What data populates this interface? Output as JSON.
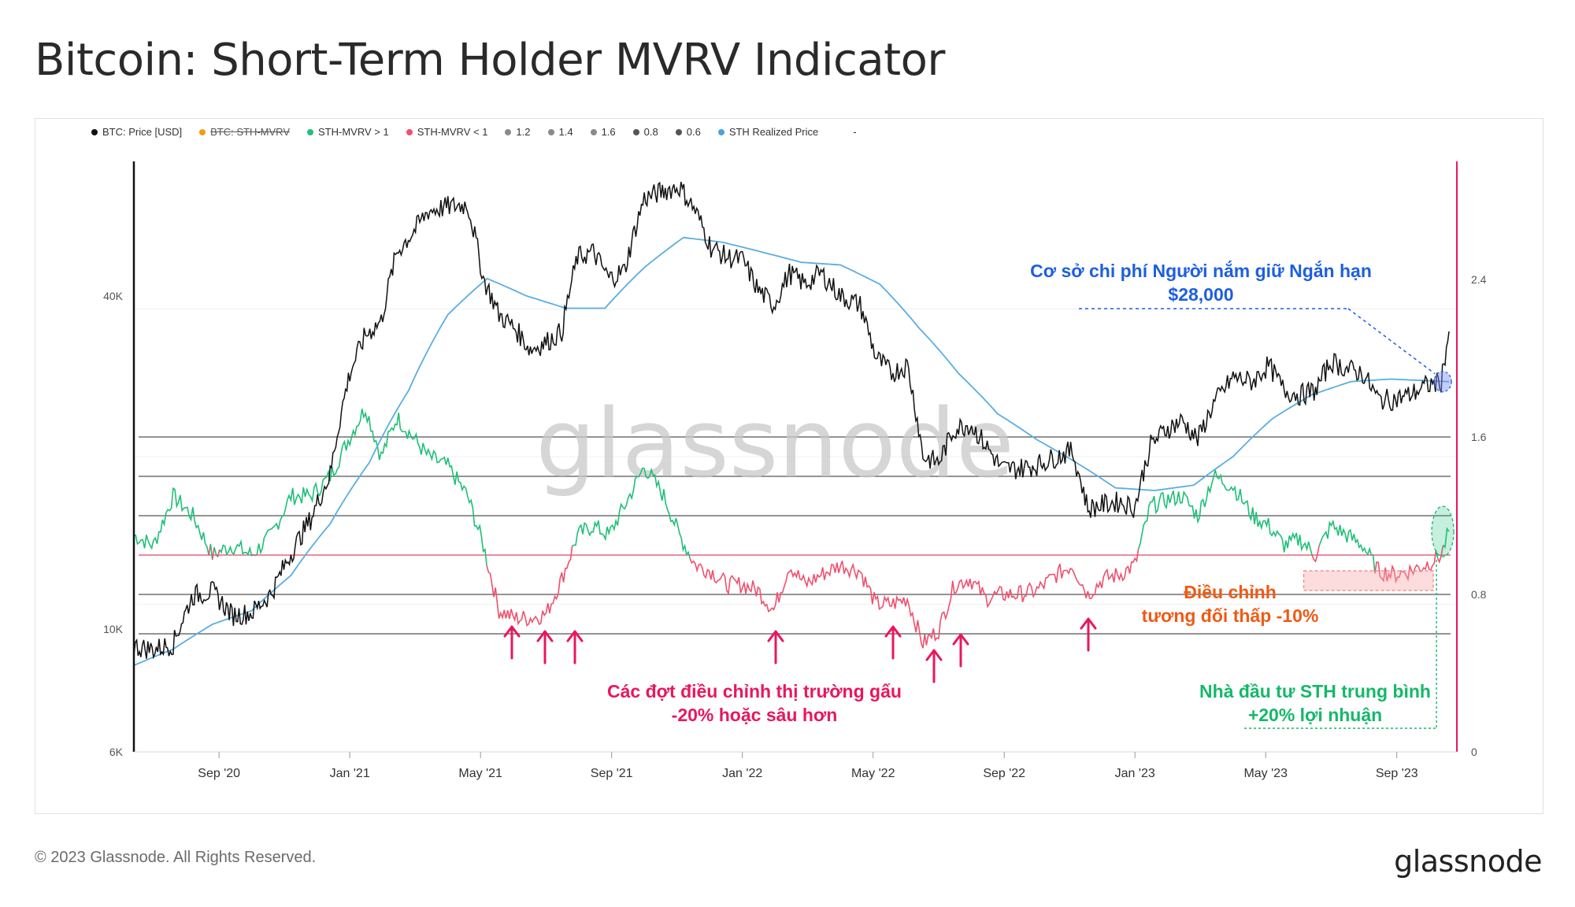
{
  "title": "Bitcoin: Short-Term Holder MVRV Indicator",
  "footer": "© 2023 Glassnode. All Rights Reserved.",
  "brand": "glassnode",
  "watermark": "glassnode",
  "legend": [
    {
      "label": "BTC: Price [USD]",
      "color": "#111111",
      "struck": false
    },
    {
      "label": "BTC: STH-MVRV",
      "color": "#f39c12",
      "struck": true
    },
    {
      "label": "STH-MVRV > 1",
      "color": "#1fc07a",
      "struck": false
    },
    {
      "label": "STH-MVRV < 1",
      "color": "#f0506e",
      "struck": false
    },
    {
      "label": "1.2",
      "color": "#8a8a8a",
      "struck": false
    },
    {
      "label": "1.4",
      "color": "#8a8a8a",
      "struck": false
    },
    {
      "label": "1.6",
      "color": "#8a8a8a",
      "struck": false
    },
    {
      "label": "0.8",
      "color": "#555555",
      "struck": false
    },
    {
      "label": "0.6",
      "color": "#555555",
      "struck": false
    },
    {
      "label": "STH Realized Price",
      "color": "#4aa3df",
      "struck": false
    },
    {
      "label": "-",
      "color": "",
      "struck": false
    }
  ],
  "annotations": {
    "cost_basis_line1": "Cơ sở chi phí Người nắm giữ Ngắn hạn",
    "cost_basis_line2": "$28,000",
    "correction_line1": "Điều chỉnh",
    "correction_line2": "tương đối thấp -10%",
    "bear_line1": "Các đợt điều chỉnh thị trường gấu",
    "bear_line2": "-20% hoặc sâu hơn",
    "profit_line1": "Nhà đầu tư STH trung bình",
    "profit_line2": "+20% lợi nhuận"
  },
  "colors": {
    "price": "#111111",
    "realized": "#5aaee0",
    "above": "#1fbf78",
    "below": "#f0506e",
    "blue_note": "#1d5fe0",
    "orange_note": "#f05a14",
    "pink_note": "#e8175d",
    "green_note": "#14b86a",
    "axis_right": "#e8175d"
  },
  "chart_data": {
    "type": "line",
    "x_range": [
      "2020-06-15",
      "2023-10-20"
    ],
    "x_ticks": [
      {
        "label": "Sep '20",
        "t": 2020.667
      },
      {
        "label": "Jan '21",
        "t": 2021.0
      },
      {
        "label": "May '21",
        "t": 2021.333
      },
      {
        "label": "Sep '21",
        "t": 2021.667
      },
      {
        "label": "Jan '22",
        "t": 2022.0
      },
      {
        "label": "May '22",
        "t": 2022.333
      },
      {
        "label": "Sep '22",
        "t": 2022.667
      },
      {
        "label": "Jan '23",
        "t": 2023.0
      },
      {
        "label": "May '23",
        "t": 2023.333
      },
      {
        "label": "Sep '23",
        "t": 2023.667
      }
    ],
    "left_axis": {
      "scale": "log",
      "ylim": [
        6000,
        70000
      ],
      "ticks": [
        {
          "label": "6K",
          "v": 6000
        },
        {
          "label": "10K",
          "v": 10000
        },
        {
          "label": "40K",
          "v": 40000
        }
      ]
    },
    "right_axis": {
      "ylim": [
        0,
        3.0
      ],
      "ticks": [
        {
          "label": "0",
          "v": 0
        },
        {
          "label": "0.8",
          "v": 0.8
        },
        {
          "label": "1.6",
          "v": 1.6
        },
        {
          "label": "2.4",
          "v": 2.4
        }
      ]
    },
    "reference_lines": [
      0.6,
      0.8,
      1.0,
      1.2,
      1.4,
      1.6
    ],
    "series": [
      {
        "name": "BTC: Price [USD]",
        "axis": "left",
        "t": [
          2020.45,
          2020.5,
          2020.55,
          2020.6,
          2020.65,
          2020.7,
          2020.75,
          2020.8,
          2020.85,
          2020.9,
          2020.95,
          2021.0,
          2021.04,
          2021.08,
          2021.12,
          2021.16,
          2021.2,
          2021.25,
          2021.3,
          2021.34,
          2021.38,
          2021.42,
          2021.46,
          2021.5,
          2021.54,
          2021.58,
          2021.62,
          2021.66,
          2021.7,
          2021.75,
          2021.8,
          2021.84,
          2021.88,
          2021.92,
          2021.96,
          2022.0,
          2022.04,
          2022.08,
          2022.12,
          2022.16,
          2022.2,
          2022.25,
          2022.3,
          2022.34,
          2022.38,
          2022.42,
          2022.46,
          2022.5,
          2022.54,
          2022.58,
          2022.62,
          2022.66,
          2022.7,
          2022.75,
          2022.8,
          2022.84,
          2022.88,
          2022.92,
          2022.96,
          2023.0,
          2023.04,
          2023.08,
          2023.12,
          2023.16,
          2023.2,
          2023.25,
          2023.3,
          2023.34,
          2023.38,
          2023.42,
          2023.46,
          2023.5,
          2023.54,
          2023.58,
          2023.62,
          2023.66,
          2023.7,
          2023.74,
          2023.78,
          2023.8
        ],
        "values": [
          9300,
          9200,
          9400,
          11500,
          11700,
          10600,
          10700,
          11600,
          13700,
          15800,
          19000,
          29000,
          34000,
          36000,
          48000,
          52000,
          57000,
          58000,
          58500,
          43000,
          37000,
          35000,
          32000,
          33000,
          34500,
          47000,
          48000,
          43000,
          44500,
          60000,
          62000,
          63000,
          57000,
          49000,
          47000,
          46500,
          41000,
          38500,
          44000,
          42000,
          44000,
          40000,
          38500,
          31000,
          29000,
          30000,
          20500,
          20000,
          23000,
          23500,
          21500,
          19500,
          19500,
          19800,
          20500,
          21000,
          16500,
          16800,
          17000,
          16600,
          21500,
          23000,
          23800,
          22000,
          25500,
          28500,
          28000,
          30000,
          27000,
          26500,
          27000,
          30500,
          29500,
          29000,
          26000,
          26000,
          26500,
          27500,
          28000,
          34500
        ]
      },
      {
        "name": "STH Realized Price",
        "axis": "left",
        "t": [
          2020.45,
          2020.55,
          2020.65,
          2020.75,
          2020.85,
          2020.95,
          2021.05,
          2021.15,
          2021.25,
          2021.35,
          2021.45,
          2021.55,
          2021.65,
          2021.75,
          2021.85,
          2021.95,
          2022.05,
          2022.15,
          2022.25,
          2022.35,
          2022.45,
          2022.55,
          2022.65,
          2022.75,
          2022.85,
          2022.95,
          2023.05,
          2023.15,
          2023.25,
          2023.35,
          2023.45,
          2023.55,
          2023.65,
          2023.75,
          2023.8
        ],
        "values": [
          8600,
          9200,
          10200,
          10800,
          12500,
          15500,
          20000,
          27000,
          37000,
          43000,
          40000,
          38000,
          38000,
          45000,
          51000,
          50000,
          48000,
          46000,
          45500,
          42000,
          35000,
          29000,
          24500,
          22000,
          20000,
          18000,
          17800,
          18200,
          20500,
          24000,
          26500,
          28000,
          28300,
          28100,
          28000
        ]
      },
      {
        "name": "STH-MVRV",
        "axis": "right",
        "t": [
          2020.45,
          2020.5,
          2020.55,
          2020.6,
          2020.65,
          2020.7,
          2020.75,
          2020.8,
          2020.85,
          2020.9,
          2020.95,
          2021.0,
          2021.04,
          2021.08,
          2021.12,
          2021.16,
          2021.2,
          2021.25,
          2021.3,
          2021.34,
          2021.38,
          2021.42,
          2021.46,
          2021.5,
          2021.54,
          2021.58,
          2021.62,
          2021.66,
          2021.7,
          2021.75,
          2021.8,
          2021.84,
          2021.88,
          2021.92,
          2021.96,
          2022.0,
          2022.04,
          2022.08,
          2022.12,
          2022.16,
          2022.2,
          2022.25,
          2022.3,
          2022.34,
          2022.38,
          2022.42,
          2022.46,
          2022.5,
          2022.54,
          2022.58,
          2022.62,
          2022.66,
          2022.7,
          2022.75,
          2022.8,
          2022.84,
          2022.88,
          2022.92,
          2022.96,
          2023.0,
          2023.04,
          2023.08,
          2023.12,
          2023.16,
          2023.2,
          2023.25,
          2023.3,
          2023.34,
          2023.38,
          2023.42,
          2023.46,
          2023.5,
          2023.54,
          2023.58,
          2023.62,
          2023.66,
          2023.7,
          2023.74,
          2023.78,
          2023.8
        ],
        "values": [
          1.1,
          1.05,
          1.3,
          1.2,
          1.0,
          1.05,
          1.0,
          1.1,
          1.3,
          1.3,
          1.4,
          1.6,
          1.75,
          1.5,
          1.7,
          1.6,
          1.5,
          1.45,
          1.3,
          1.05,
          0.72,
          0.68,
          0.68,
          0.7,
          0.88,
          1.1,
          1.15,
          1.1,
          1.25,
          1.45,
          1.3,
          1.1,
          0.95,
          0.92,
          0.85,
          0.85,
          0.82,
          0.72,
          0.95,
          0.85,
          0.9,
          0.95,
          0.92,
          0.75,
          0.75,
          0.78,
          0.55,
          0.62,
          0.85,
          0.88,
          0.78,
          0.8,
          0.8,
          0.82,
          0.9,
          0.95,
          0.8,
          0.88,
          0.9,
          0.95,
          1.25,
          1.28,
          1.3,
          1.2,
          1.4,
          1.35,
          1.2,
          1.15,
          1.05,
          1.08,
          1.0,
          1.15,
          1.1,
          1.05,
          0.92,
          0.9,
          0.92,
          0.95,
          1.0,
          1.12
        ]
      }
    ]
  }
}
